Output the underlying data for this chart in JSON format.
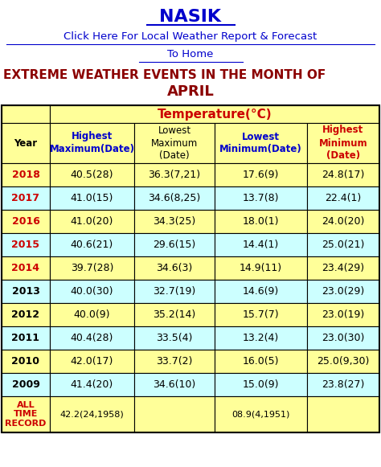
{
  "title": "NASIK",
  "link1": "Click Here For Local Weather Report & Forecast",
  "link2": "To Home",
  "heading1": "EXTREME WEATHER EVENTS IN THE MONTH OF",
  "heading2": "APRIL",
  "temp_header": "Temperature(°C)",
  "col_header_l1": [
    "Year",
    "Highest",
    "Lowest\nMaximum",
    "Lowest",
    "Highest\nMinimum"
  ],
  "col_header_l2": [
    "",
    "Maximum(Date)",
    "(Date)",
    "Minimum(Date)",
    "(Date)"
  ],
  "rows": [
    [
      "2018",
      "40.5(28)",
      "36.3(7,21)",
      "17.6(9)",
      "24.8(17)"
    ],
    [
      "2017",
      "41.0(15)",
      "34.6(8,25)",
      "13.7(8)",
      "22.4(1)"
    ],
    [
      "2016",
      "41.0(20)",
      "34.3(25)",
      "18.0(1)",
      "24.0(20)"
    ],
    [
      "2015",
      "40.6(21)",
      "29.6(15)",
      "14.4(1)",
      "25.0(21)"
    ],
    [
      "2014",
      "39.7(28)",
      "34.6(3)",
      "14.9(11)",
      "23.4(29)"
    ],
    [
      "2013",
      "40.0(30)",
      "32.7(19)",
      "14.6(9)",
      "23.0(29)"
    ],
    [
      "2012",
      "40.0(9)",
      "35.2(14)",
      "15.7(7)",
      "23.0(19)"
    ],
    [
      "2011",
      "40.4(28)",
      "33.5(4)",
      "13.2(4)",
      "23.0(30)"
    ],
    [
      "2010",
      "42.0(17)",
      "33.7(2)",
      "16.0(5)",
      "25.0(9,30)"
    ],
    [
      "2009",
      "41.4(20)",
      "34.6(10)",
      "15.0(9)",
      "23.8(27)"
    ],
    [
      "ALL\nTIME\nRECORD",
      "42.2(24,1958)",
      "",
      "08.9(4,1951)",
      ""
    ]
  ],
  "year_highlights": [
    "2018",
    "2017",
    "2016",
    "2015",
    "2014"
  ],
  "bg_color": "#ffffff",
  "table_yellow": "#ffff99",
  "table_cyan": "#ccffff",
  "title_color": "#0000cc",
  "link_color": "#0000cc",
  "heading_color": "#8B0000",
  "temp_header_color": "#cc0000",
  "year_highlight_color": "#cc0000",
  "year_normal_color": "#000000",
  "col_header_colors": [
    "#000000",
    "#0000cc",
    "#000000",
    "#0000cc",
    "#cc0000"
  ],
  "col_header_bold": [
    true,
    true,
    false,
    true,
    true
  ],
  "border_color": "#000000",
  "all_time_color": "#cc0000"
}
